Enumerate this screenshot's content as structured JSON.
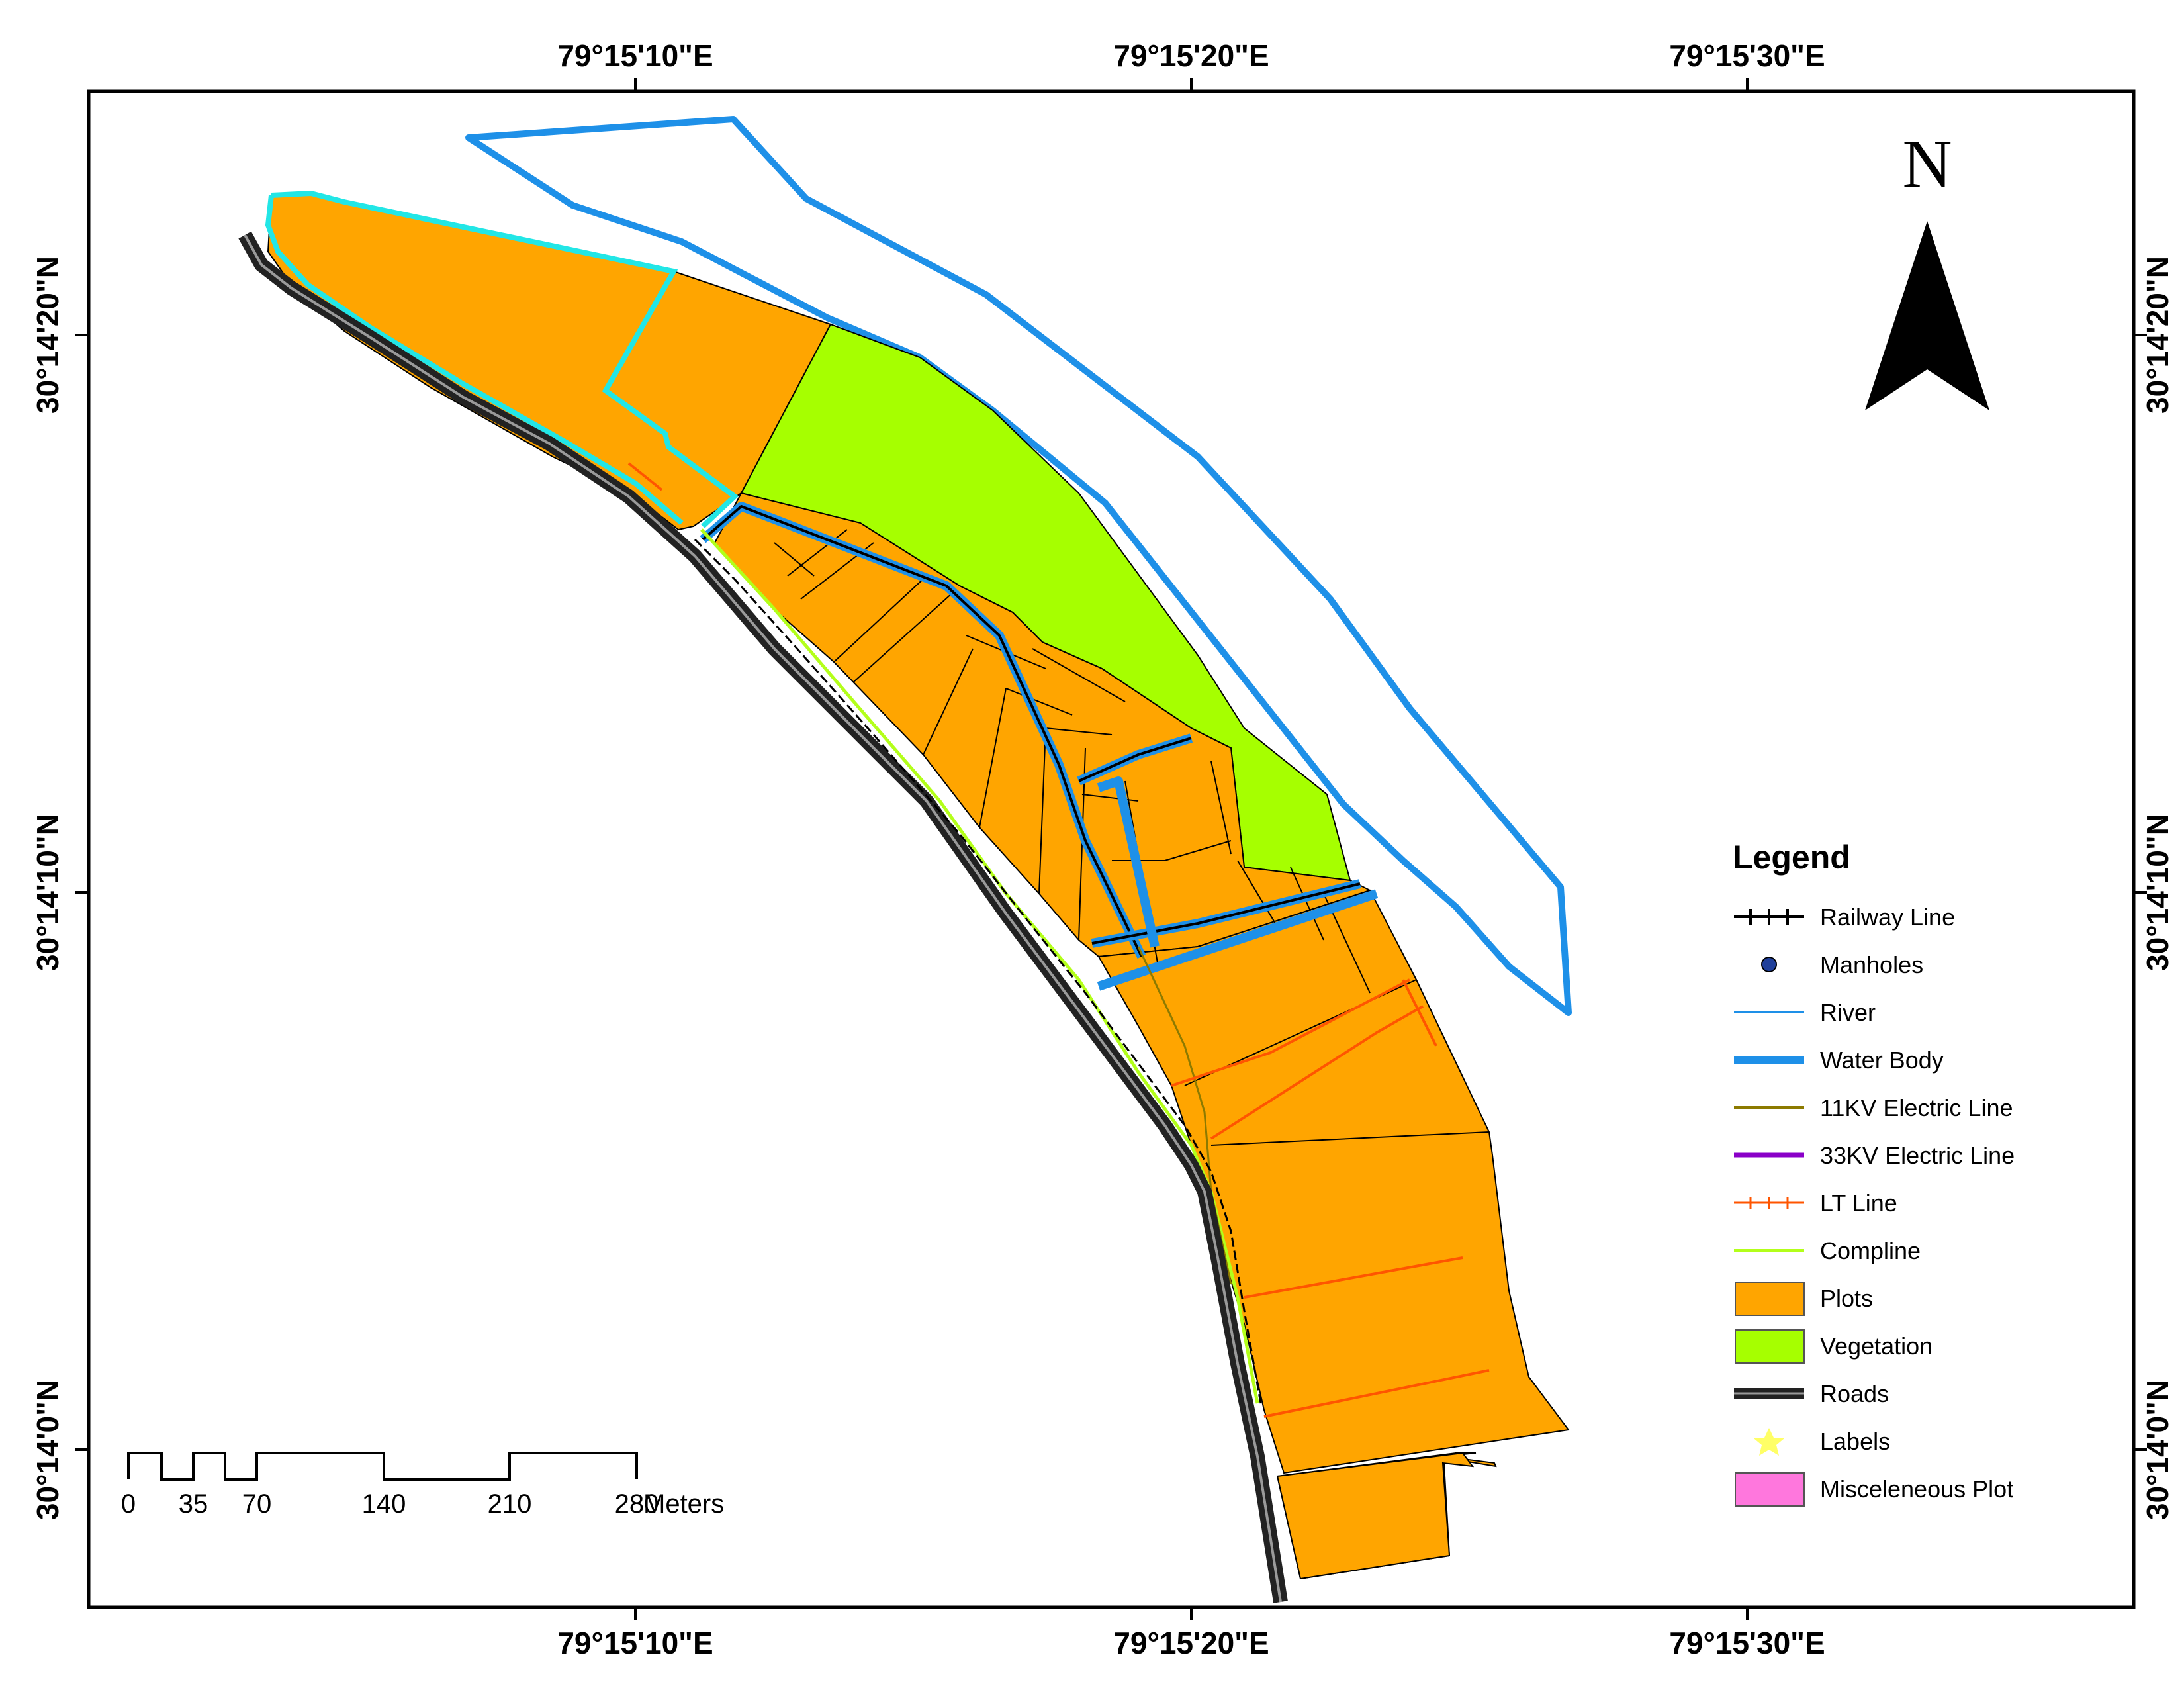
{
  "map": {
    "top_longitude_labels": [
      "79°15'10\"E",
      "79°15'20\"E",
      "79°15'30\"E"
    ],
    "bottom_longitude_labels": [
      "79°15'10\"E",
      "79°15'20\"E",
      "79°15'30\"E"
    ],
    "left_latitude_labels": [
      "30°14'20\"N",
      "30°14'10\"N",
      "30°14'0\"N"
    ],
    "right_latitude_labels": [
      "30°14'20\"N",
      "30°14'10\"N",
      "30°14'0\"N"
    ],
    "north_arrow_letter": "N",
    "north_arrow_icon": "north-arrow-icon"
  },
  "legend": {
    "title": "Legend",
    "items": [
      {
        "label": "Railway Line",
        "color": "#000000",
        "icon": "railway-line-icon"
      },
      {
        "label": "Manholes",
        "color": "#1f3f9a",
        "icon": "manhole-dot-icon"
      },
      {
        "label": "River",
        "color": "#1e90e8",
        "icon": "river-line-icon"
      },
      {
        "label": "Water Body",
        "color": "#1e90e8",
        "icon": "water-body-line-icon"
      },
      {
        "label": "11KV Electric Line",
        "color": "#8c7a00",
        "icon": "11kv-line-icon"
      },
      {
        "label": "33KV Electric Line",
        "color": "#8a00c8",
        "icon": "33kv-line-icon"
      },
      {
        "label": "LT Line",
        "color": "#ff5500",
        "icon": "lt-line-icon"
      },
      {
        "label": "Compline",
        "color": "#b3ff1a",
        "icon": "compline-icon"
      },
      {
        "label": "Plots",
        "color": "#ffa500",
        "icon": "plots-swatch-icon"
      },
      {
        "label": "Vegetation",
        "color": "#a6ff00",
        "icon": "vegetation-swatch-icon"
      },
      {
        "label": "Roads",
        "color": "#222222",
        "icon": "roads-line-icon"
      },
      {
        "label": "Labels",
        "color": "#ffff66",
        "icon": "star-icon"
      },
      {
        "label": "Misceleneous Plot",
        "color": "#ff77dd",
        "icon": "misc-plot-swatch-icon"
      }
    ]
  },
  "scale_bar": {
    "unit": "Meters",
    "ticks": [
      "0",
      "35",
      "70",
      "140",
      "210",
      "280"
    ]
  },
  "colors": {
    "plots": "#ffa500",
    "vegetation": "#a6ff00",
    "water": "#1e90e8",
    "cyan_boundary": "#22e6e6",
    "road": "#222222",
    "lt_line": "#ff5500"
  }
}
